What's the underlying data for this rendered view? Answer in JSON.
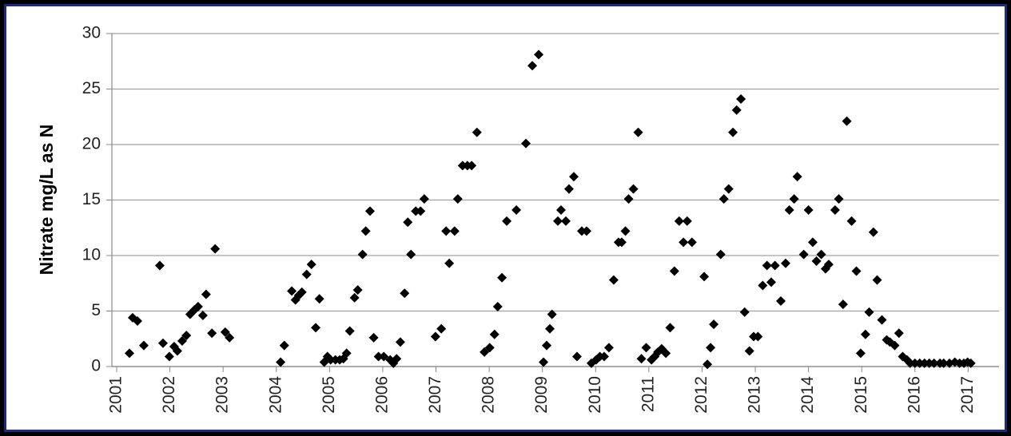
{
  "chart_data": {
    "type": "scatter",
    "y_label": "Nitrate  mg/L as N",
    "color": "#000000",
    "marker": "diamond",
    "grid": true,
    "xlim": [
      2000.91,
      2017.58
    ],
    "xticks": [
      2001,
      2002,
      2003,
      2004,
      2005,
      2006,
      2007,
      2008,
      2009,
      2010,
      2011,
      2012,
      2013,
      2014,
      2015,
      2016,
      2017
    ],
    "ylim": [
      0,
      30
    ],
    "yticks": [
      0,
      5,
      10,
      15,
      20,
      25,
      30
    ],
    "x": [
      2001.24,
      2001.3,
      2001.39,
      2001.51,
      2001.81,
      2001.87,
      2001.99,
      2002.08,
      2002.14,
      2002.23,
      2002.31,
      2002.38,
      2002.46,
      2002.53,
      2002.62,
      2002.68,
      2002.79,
      2002.85,
      2003.04,
      2003.12,
      2004.08,
      2004.15,
      2004.29,
      2004.36,
      2004.42,
      2004.48,
      2004.57,
      2004.66,
      2004.74,
      2004.81,
      2004.9,
      2004.96,
      2005.02,
      2005.11,
      2005.19,
      2005.26,
      2005.32,
      2005.38,
      2005.47,
      2005.53,
      2005.62,
      2005.68,
      2005.76,
      2005.83,
      2005.92,
      2006.02,
      2006.14,
      2006.2,
      2006.26,
      2006.33,
      2006.41,
      2006.47,
      2006.53,
      2006.62,
      2006.71,
      2006.78,
      2006.99,
      2007.1,
      2007.19,
      2007.25,
      2007.35,
      2007.41,
      2007.5,
      2007.59,
      2007.67,
      2007.77,
      2007.91,
      2008.01,
      2008.1,
      2008.16,
      2008.24,
      2008.33,
      2008.51,
      2008.69,
      2008.81,
      2008.93,
      2009.02,
      2009.08,
      2009.14,
      2009.18,
      2009.29,
      2009.35,
      2009.44,
      2009.5,
      2009.59,
      2009.65,
      2009.74,
      2009.83,
      2009.92,
      2010.01,
      2010.08,
      2010.16,
      2010.25,
      2010.34,
      2010.43,
      2010.49,
      2010.56,
      2010.62,
      2010.71,
      2010.8,
      2010.86,
      2010.95,
      2011.05,
      2011.11,
      2011.17,
      2011.24,
      2011.32,
      2011.4,
      2011.48,
      2011.57,
      2011.65,
      2011.72,
      2011.81,
      2012.04,
      2012.1,
      2012.16,
      2012.22,
      2012.35,
      2012.41,
      2012.5,
      2012.58,
      2012.65,
      2012.73,
      2012.8,
      2012.89,
      2012.97,
      2013.05,
      2013.14,
      2013.22,
      2013.3,
      2013.37,
      2013.48,
      2013.57,
      2013.64,
      2013.73,
      2013.79,
      2013.91,
      2014.0,
      2014.08,
      2014.15,
      2014.24,
      2014.32,
      2014.38,
      2014.5,
      2014.57,
      2014.65,
      2014.72,
      2014.81,
      2014.9,
      2014.98,
      2015.07,
      2015.14,
      2015.22,
      2015.29,
      2015.38,
      2015.47,
      2015.53,
      2015.62,
      2015.7,
      2015.77,
      2015.85,
      2015.91,
      2016.0,
      2016.09,
      2016.18,
      2016.27,
      2016.36,
      2016.47,
      2016.54,
      2016.65,
      2016.75,
      2016.84,
      2016.92,
      2016.99,
      2017.05
    ],
    "values": [
      1.2,
      4.4,
      4.1,
      1.9,
      9.1,
      2.1,
      0.9,
      1.8,
      1.4,
      2.3,
      2.8,
      4.7,
      5.1,
      5.4,
      4.6,
      6.5,
      3.0,
      10.6,
      3.1,
      2.6,
      0.4,
      1.9,
      6.8,
      6.0,
      6.4,
      6.7,
      8.3,
      9.2,
      3.5,
      6.1,
      0.4,
      0.9,
      0.6,
      0.6,
      0.6,
      0.7,
      1.2,
      3.2,
      6.2,
      6.9,
      10.1,
      12.2,
      14.0,
      2.6,
      0.9,
      0.9,
      0.6,
      0.3,
      0.7,
      2.2,
      6.6,
      13.0,
      10.1,
      14.0,
      14.0,
      15.1,
      2.7,
      3.4,
      12.2,
      9.3,
      12.2,
      15.1,
      18.1,
      18.1,
      18.1,
      21.1,
      1.3,
      1.7,
      2.9,
      5.4,
      8.0,
      13.1,
      14.1,
      20.1,
      27.1,
      28.1,
      0.4,
      1.9,
      3.4,
      4.7,
      13.1,
      14.1,
      13.1,
      16.0,
      17.1,
      0.9,
      12.2,
      12.2,
      0.3,
      0.6,
      0.9,
      0.9,
      1.7,
      7.8,
      11.2,
      11.2,
      12.2,
      15.1,
      16.0,
      21.1,
      0.7,
      1.7,
      0.6,
      0.9,
      1.3,
      1.6,
      1.2,
      3.5,
      8.6,
      13.1,
      11.2,
      13.1,
      11.2,
      8.1,
      0.2,
      1.7,
      3.8,
      10.1,
      15.1,
      16.0,
      21.1,
      23.1,
      24.1,
      4.9,
      1.4,
      2.7,
      2.7,
      7.3,
      9.1,
      7.6,
      9.1,
      5.9,
      9.3,
      14.1,
      15.1,
      17.1,
      10.1,
      14.1,
      11.2,
      9.5,
      10.1,
      8.8,
      9.2,
      14.1,
      15.1,
      5.6,
      22.1,
      13.1,
      8.6,
      1.2,
      2.9,
      4.9,
      12.1,
      7.8,
      4.2,
      2.4,
      2.2,
      1.9,
      3.0,
      0.9,
      0.6,
      0.3,
      0.3,
      0.3,
      0.3,
      0.3,
      0.3,
      0.3,
      0.3,
      0.3,
      0.4,
      0.3,
      0.3,
      0.4,
      0.3
    ]
  }
}
